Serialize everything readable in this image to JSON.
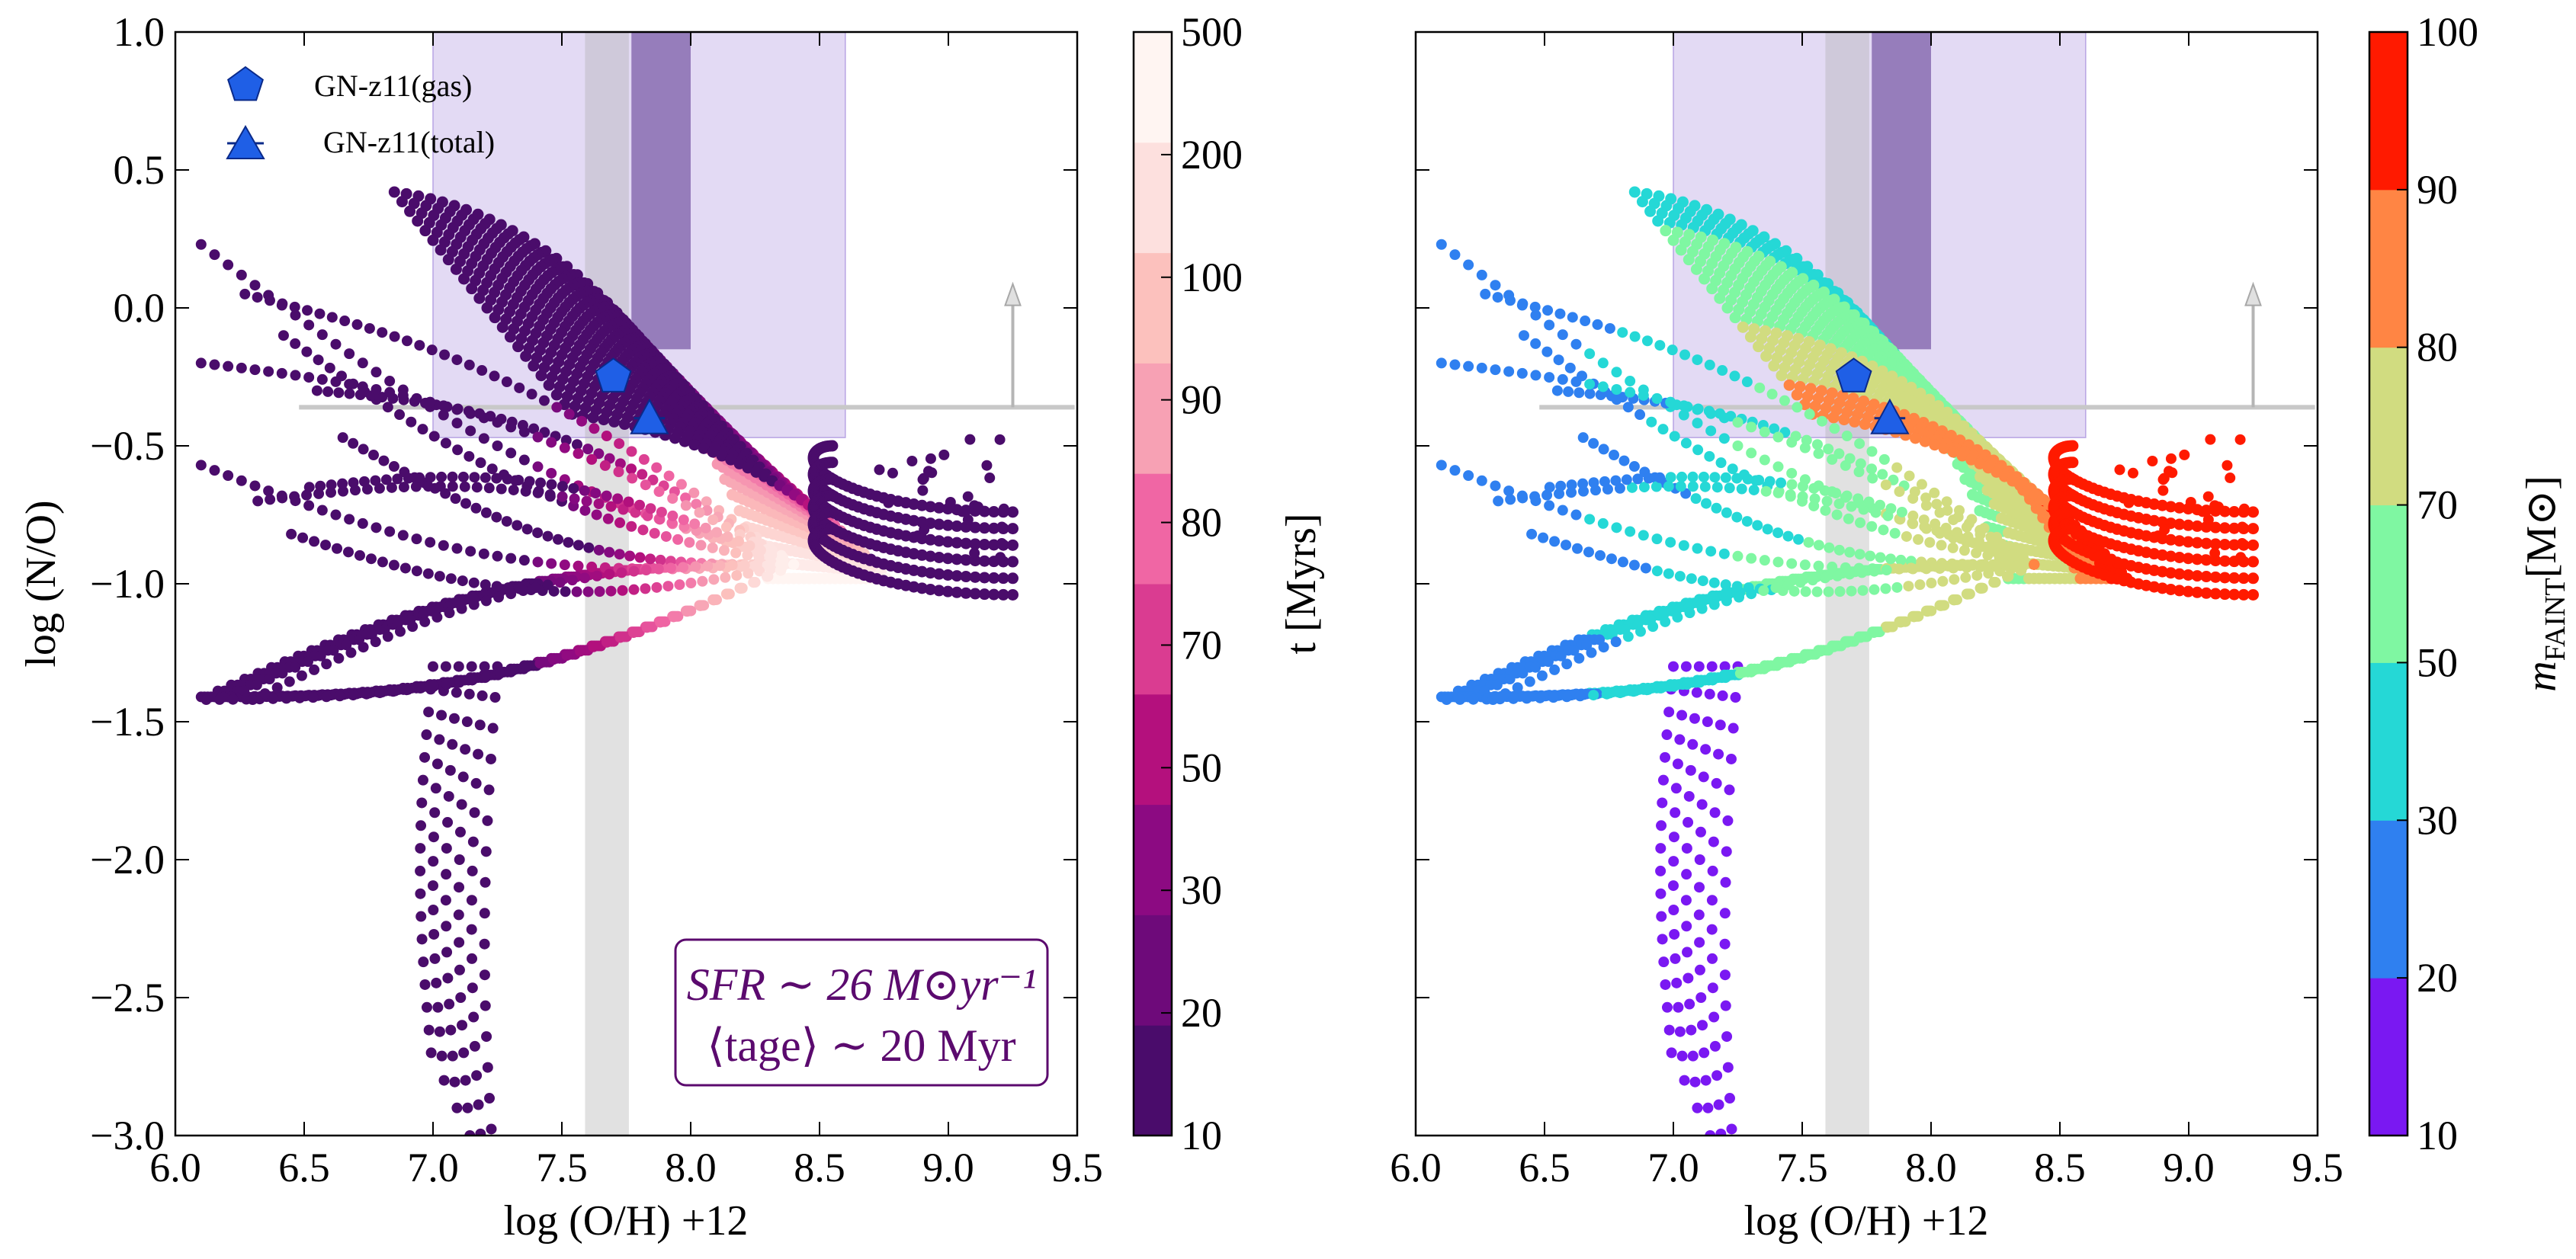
{
  "chart_data": [
    {
      "panel": "left",
      "type": "scatter",
      "xlabel": "log (O/H) +12",
      "ylabel": "log (N/O)",
      "xlim": [
        6.0,
        9.5
      ],
      "ylim": [
        -3.0,
        1.0
      ],
      "xticks": [
        "6.0",
        "6.5",
        "7.0",
        "7.5",
        "8.0",
        "8.5",
        "9.0",
        "9.5"
      ],
      "yticks": [
        "1.0",
        "0.5",
        "0.0",
        "−0.5",
        "−1.0",
        "−1.5",
        "−2.0",
        "−2.5",
        "−3.0"
      ],
      "legend": [
        {
          "label": "GN-z11(gas)",
          "marker": "pentagon",
          "color": "#1f5fe6"
        },
        {
          "label": "GN-z11(total)",
          "marker": "triangle",
          "color": "#1f5fe6"
        }
      ],
      "observations": [
        {
          "label": "GN-z11(gas)",
          "x": 7.7,
          "y": -0.25
        },
        {
          "label": "GN-z11(total)",
          "x": 7.84,
          "y": -0.4,
          "x_err": [
            0.06,
            0.06
          ]
        }
      ],
      "annotation": {
        "line1": "SFR ∼ 26 M⊙yr⁻¹",
        "line2": "⟨tage⟩ ∼ 20 Myr",
        "color": "#5b0a6e"
      },
      "colorbar": {
        "label": "t [Myrs]",
        "ticks": [
          "10",
          "20",
          "30",
          "50",
          "70",
          "80",
          "90",
          "100",
          "200",
          "500"
        ],
        "colors": [
          "#4a0c6b",
          "#6e0a7a",
          "#8c0a82",
          "#b4107d",
          "#da3c91",
          "#f066a4",
          "#f7a1b4",
          "#fcc1bd",
          "#fde0de",
          "#fff5f2"
        ]
      },
      "tracks_age_colored": true
    },
    {
      "panel": "right",
      "type": "scatter",
      "xlabel": "log (O/H) +12",
      "ylabel": "",
      "xlim": [
        6.0,
        9.5
      ],
      "ylim": [
        -3.0,
        1.0
      ],
      "xticks": [
        "6.0",
        "6.5",
        "7.0",
        "7.5",
        "8.0",
        "8.5",
        "9.0",
        "9.5"
      ],
      "observations": [
        {
          "label": "GN-z11(gas)",
          "x": 7.7,
          "y": -0.25
        },
        {
          "label": "GN-z11(total)",
          "x": 7.84,
          "y": -0.4
        }
      ],
      "colorbar": {
        "label": "mFAINT[M⊙]",
        "label_main": "m",
        "label_sub": "FAINT",
        "label_unit": "[M⊙]",
        "ticks": [
          "10",
          "20",
          "30",
          "50",
          "70",
          "80",
          "90",
          "100"
        ],
        "colors": [
          "#7a18f2",
          "#2f80f0",
          "#25d8d6",
          "#7ff7a2",
          "#d1dc80",
          "#ff8544",
          "#ff1a00"
        ]
      },
      "tracks_mass_colored": true
    }
  ],
  "reference_regions": {
    "gray_band_x": [
      7.59,
      7.76
    ],
    "gray_line_y": -0.36,
    "gray_line_x": [
      6.48,
      9.5
    ],
    "upper_limit_arrow": {
      "x": 9.25,
      "y_from": -0.36,
      "y_to": 0.07
    },
    "light_purple_box_main": {
      "x": [
        7.0,
        8.6
      ],
      "y": [
        -0.47,
        1.0
      ]
    },
    "dark_purple_band_x": [
      7.77,
      8.0
    ],
    "dark_purple_band_y": [
      -0.15,
      1.0
    ],
    "light_purple_color": "#d9cdf0",
    "dark_purple_color": "#8d72b5",
    "gray_color": "#d8d8d8"
  }
}
